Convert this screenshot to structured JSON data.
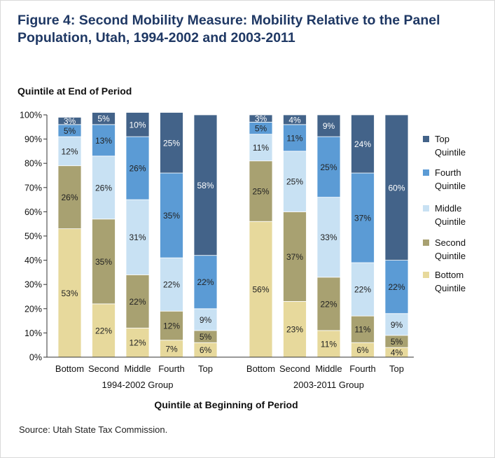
{
  "figure": {
    "title": "Figure 4: Second Mobility Measure: Mobility Relative to the Panel Population, Utah, 1994-2002 and 2003-2011",
    "source": "Source: Utah State Tax Commission."
  },
  "chart_data": {
    "type": "bar",
    "stacked": true,
    "ylabel": "Quintile at End of Period",
    "xlabel": "Quintile at Beginning of Period",
    "ylim": [
      0,
      100
    ],
    "yticks": [
      "0%",
      "10%",
      "20%",
      "30%",
      "40%",
      "50%",
      "60%",
      "70%",
      "80%",
      "90%",
      "100%"
    ],
    "legend_position": "right",
    "grid": false,
    "groups": [
      {
        "name": "1994-2002 Group",
        "categories": [
          "Bottom",
          "Second",
          "Middle",
          "Fourth",
          "Top"
        ],
        "series": [
          {
            "name": "Bottom Quintile",
            "values": [
              53,
              22,
              12,
              7,
              6
            ],
            "labels": [
              "53%",
              "22%",
              "12%",
              "7%",
              "6%"
            ]
          },
          {
            "name": "Second Quintile",
            "values": [
              26,
              35,
              22,
              12,
              5
            ],
            "labels": [
              "26%",
              "35%",
              "22%",
              "12%",
              "5%"
            ]
          },
          {
            "name": "Middle Quintile",
            "values": [
              12,
              26,
              31,
              22,
              9
            ],
            "labels": [
              "12%",
              "26%",
              "31%",
              "22%",
              "9%"
            ]
          },
          {
            "name": "Fourth Quintile",
            "values": [
              5,
              13,
              26,
              35,
              22
            ],
            "labels": [
              "5%",
              "13%",
              "26%",
              "35%",
              "22%"
            ]
          },
          {
            "name": "Top Quintile",
            "values": [
              3,
              5,
              10,
              25,
              58
            ],
            "labels": [
              "3%",
              "5%",
              "10%",
              "25%",
              "58%"
            ]
          }
        ]
      },
      {
        "name": "2003-2011 Group",
        "categories": [
          "Bottom",
          "Second",
          "Middle",
          "Fourth",
          "Top"
        ],
        "series": [
          {
            "name": "Bottom Quintile",
            "values": [
              56,
              23,
              11,
              6,
              4
            ],
            "labels": [
              "56%",
              "23%",
              "11%",
              "6%",
              "4%"
            ]
          },
          {
            "name": "Second Quintile",
            "values": [
              25,
              37,
              22,
              11,
              5
            ],
            "labels": [
              "25%",
              "37%",
              "22%",
              "11%",
              "5%"
            ]
          },
          {
            "name": "Middle Quintile",
            "values": [
              11,
              25,
              33,
              22,
              9
            ],
            "labels": [
              "11%",
              "25%",
              "33%",
              "22%",
              "9%"
            ]
          },
          {
            "name": "Fourth Quintile",
            "values": [
              5,
              11,
              25,
              37,
              22
            ],
            "labels": [
              "5%",
              "11%",
              "25%",
              "37%",
              "22%"
            ]
          },
          {
            "name": "Top Quintile",
            "values": [
              3,
              4,
              9,
              24,
              60
            ],
            "labels": [
              "3%",
              "4%",
              "9%",
              "24%",
              "60%"
            ]
          }
        ]
      }
    ],
    "legend": [
      {
        "line1": "Top",
        "line2": "Quintile",
        "color": "#436389"
      },
      {
        "line1": "Fourth",
        "line2": "Quintile",
        "color": "#5b9bd5"
      },
      {
        "line1": "Middle",
        "line2": "Quintile",
        "color": "#c8e1f3"
      },
      {
        "line1": "Second",
        "line2": "Quintile",
        "color": "#a8a171"
      },
      {
        "line1": "Bottom",
        "line2": "Quintile",
        "color": "#e7d99c"
      }
    ],
    "colors": {
      "Bottom Quintile": "#e7d99c",
      "Second Quintile": "#a8a171",
      "Middle Quintile": "#c8e1f3",
      "Fourth Quintile": "#5b9bd5",
      "Top Quintile": "#436389"
    }
  }
}
